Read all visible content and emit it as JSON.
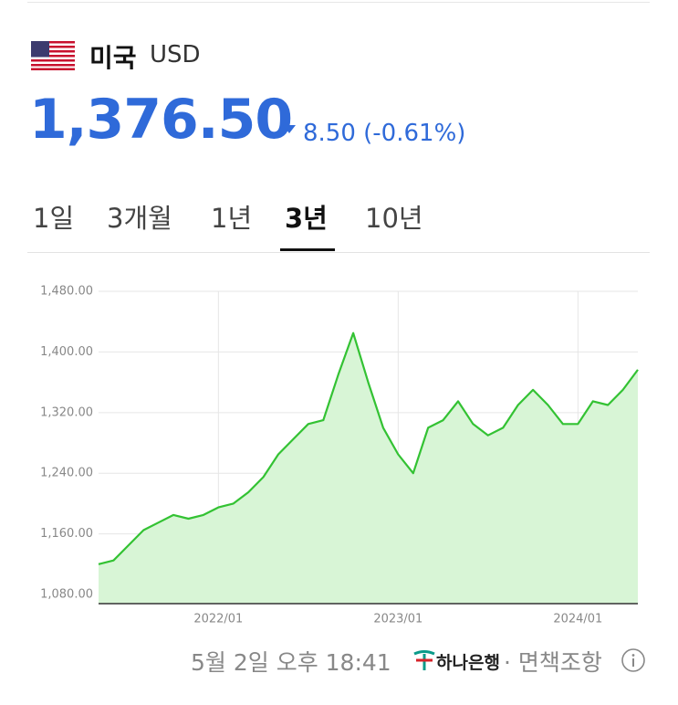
{
  "header": {
    "country": "미국",
    "code": "USD",
    "price": "1,376.50",
    "change": "8.50 (-0.61%)"
  },
  "tabs": [
    "1일",
    "3개월",
    "1년",
    "3년",
    "10년"
  ],
  "chart_data": {
    "type": "area",
    "color": "#33c233",
    "fill": "#d8f5d6",
    "grid": true,
    "x": [
      "2021/05",
      "2021/06",
      "2021/07",
      "2021/08",
      "2021/09",
      "2021/10",
      "2021/11",
      "2021/12",
      "2022/01",
      "2022/02",
      "2022/03",
      "2022/04",
      "2022/05",
      "2022/06",
      "2022/07",
      "2022/08",
      "2022/09",
      "2022/10",
      "2022/11",
      "2022/12",
      "2023/01",
      "2023/02",
      "2023/03",
      "2023/04",
      "2023/05",
      "2023/06",
      "2023/07",
      "2023/08",
      "2023/09",
      "2023/10",
      "2023/11",
      "2023/12",
      "2024/01",
      "2024/02",
      "2024/03",
      "2024/04",
      "2024/05"
    ],
    "values": [
      1120,
      1125,
      1145,
      1165,
      1175,
      1185,
      1180,
      1185,
      1195,
      1200,
      1215,
      1235,
      1265,
      1285,
      1305,
      1310,
      1370,
      1425,
      1360,
      1300,
      1265,
      1240,
      1300,
      1310,
      1335,
      1305,
      1290,
      1300,
      1330,
      1350,
      1330,
      1305,
      1305,
      1335,
      1330,
      1350,
      1376.5
    ],
    "ylim": [
      1068,
      1480
    ],
    "yticks": [
      {
        "value": 1080,
        "label": "1,080.00"
      },
      {
        "value": 1160,
        "label": "1,160.00"
      },
      {
        "value": 1240,
        "label": "1,240.00"
      },
      {
        "value": 1320,
        "label": "1,320.00"
      },
      {
        "value": 1400,
        "label": "1,400.00"
      },
      {
        "value": 1480,
        "label": "1,480.00"
      }
    ],
    "xticks": [
      "2022/01",
      "2023/01",
      "2024/01"
    ]
  },
  "footer": {
    "time": "5월 2일 오후 18:41",
    "bank": "하나은행",
    "disclaimer": "· 면책조항"
  }
}
